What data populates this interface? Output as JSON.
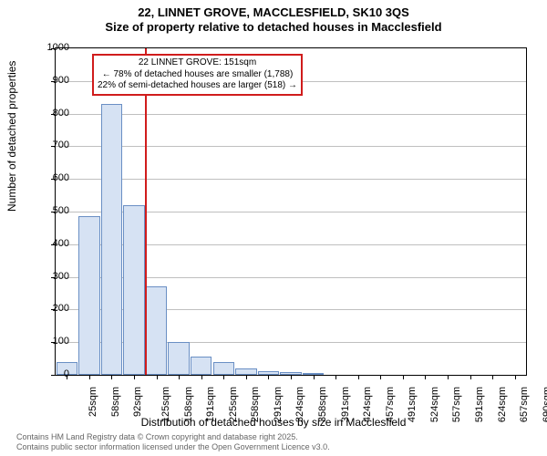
{
  "title_line1": "22, LINNET GROVE, MACCLESFIELD, SK10 3QS",
  "title_line2": "Size of property relative to detached houses in Macclesfield",
  "title_fontsize": 13,
  "ylabel": "Number of detached properties",
  "xlabel": "Distribution of detached houses by size in Macclesfield",
  "chart": {
    "plot_bg": "#ffffff",
    "grid_color": "#bfbfbf",
    "ylim_max": 1000,
    "ytick_step": 100,
    "yticks": [
      0,
      100,
      200,
      300,
      400,
      500,
      600,
      700,
      800,
      900,
      1000
    ],
    "bar_fill": "#d6e2f3",
    "bar_border": "#6a8fc4",
    "bar_width": 0.95,
    "categories": [
      "25sqm",
      "58sqm",
      "92sqm",
      "125sqm",
      "158sqm",
      "191sqm",
      "225sqm",
      "258sqm",
      "291sqm",
      "324sqm",
      "358sqm",
      "391sqm",
      "424sqm",
      "457sqm",
      "491sqm",
      "524sqm",
      "557sqm",
      "591sqm",
      "624sqm",
      "657sqm",
      "690sqm"
    ],
    "values": [
      40,
      485,
      830,
      520,
      270,
      100,
      55,
      40,
      20,
      12,
      8,
      2,
      0,
      0,
      0,
      0,
      0,
      0,
      0,
      0,
      0
    ],
    "marker_index": 4,
    "marker_color": "#d01c1c",
    "annotation_border": "#d01c1c",
    "annotation_line1": "22 LINNET GROVE: 151sqm",
    "annotation_line2": "← 78% of detached houses are smaller (1,788)",
    "annotation_line3": "22% of semi-detached houses are larger (518) →"
  },
  "footer_line1": "Contains HM Land Registry data © Crown copyright and database right 2025.",
  "footer_line2": "Contains public sector information licensed under the Open Government Licence v3.0."
}
